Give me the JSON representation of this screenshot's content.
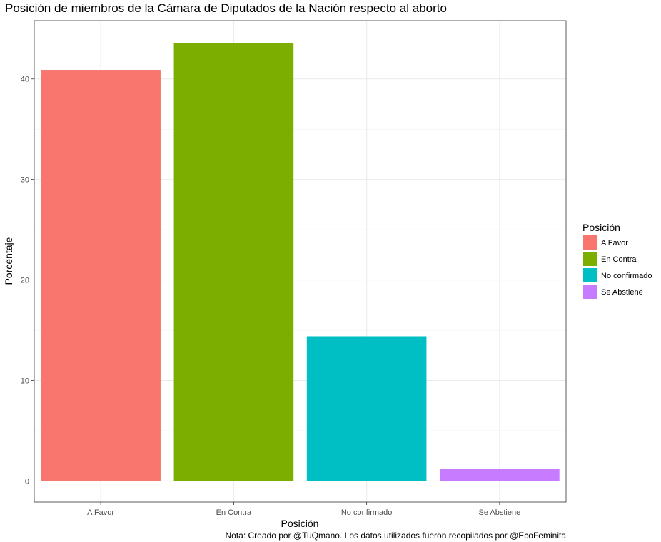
{
  "chart_data": {
    "type": "bar",
    "title": "Posición de miembros de la Cámara de Diputados de la Nación respecto al aborto",
    "xlabel": "Posición",
    "ylabel": "Porcentaje",
    "categories": [
      "A Favor",
      "En Contra",
      "No confirmado",
      "Se Abstiene"
    ],
    "values": [
      40.9,
      43.6,
      14.4,
      1.2
    ],
    "colors": [
      "#F8766D",
      "#7CAE00",
      "#00BFC4",
      "#C77CFF"
    ],
    "ylim": [
      -2.1,
      45.8
    ],
    "yticks": [
      0,
      10,
      20,
      30,
      40
    ],
    "grid": true,
    "legend": {
      "title": "Posición",
      "placement": "right",
      "entries": [
        "A Favor",
        "En Contra",
        "No confirmado",
        "Se Abstiene"
      ]
    },
    "caption": "Nota: Creado por @TuQmano. Los datos utilizados fueron recopilados por @EcoFeminita"
  }
}
